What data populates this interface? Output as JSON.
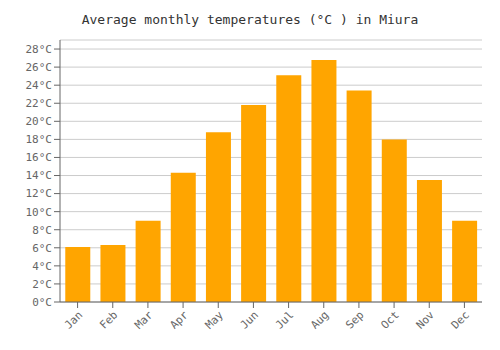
{
  "chart_data": {
    "type": "bar",
    "title": "Average monthly temperatures (°C ) in Miura",
    "categories": [
      "Jan",
      "Feb",
      "Mar",
      "Apr",
      "May",
      "Jun",
      "Jul",
      "Aug",
      "Sep",
      "Oct",
      "Nov",
      "Dec"
    ],
    "values": [
      6.1,
      6.3,
      9.0,
      14.3,
      18.8,
      21.8,
      25.1,
      26.8,
      23.4,
      18.0,
      13.5,
      9.0
    ],
    "color": "#FFA500",
    "ylim": [
      0,
      29
    ],
    "yticks": [
      {
        "value": 0,
        "label": "0°C"
      },
      {
        "value": 2,
        "label": "2°C"
      },
      {
        "value": 4,
        "label": "4°C"
      },
      {
        "value": 6,
        "label": "6°C"
      },
      {
        "value": 8,
        "label": "8°C"
      },
      {
        "value": 10,
        "label": "10°C"
      },
      {
        "value": 12,
        "label": "12°C"
      },
      {
        "value": 14,
        "label": "14°C"
      },
      {
        "value": 16,
        "label": "16°C"
      },
      {
        "value": 18,
        "label": "18°C"
      },
      {
        "value": 20,
        "label": "20°C"
      },
      {
        "value": 22,
        "label": "22°C"
      },
      {
        "value": 24,
        "label": "24°C"
      },
      {
        "value": 26,
        "label": "26°C"
      },
      {
        "value": 28,
        "label": "28°C"
      }
    ],
    "grid": true
  }
}
